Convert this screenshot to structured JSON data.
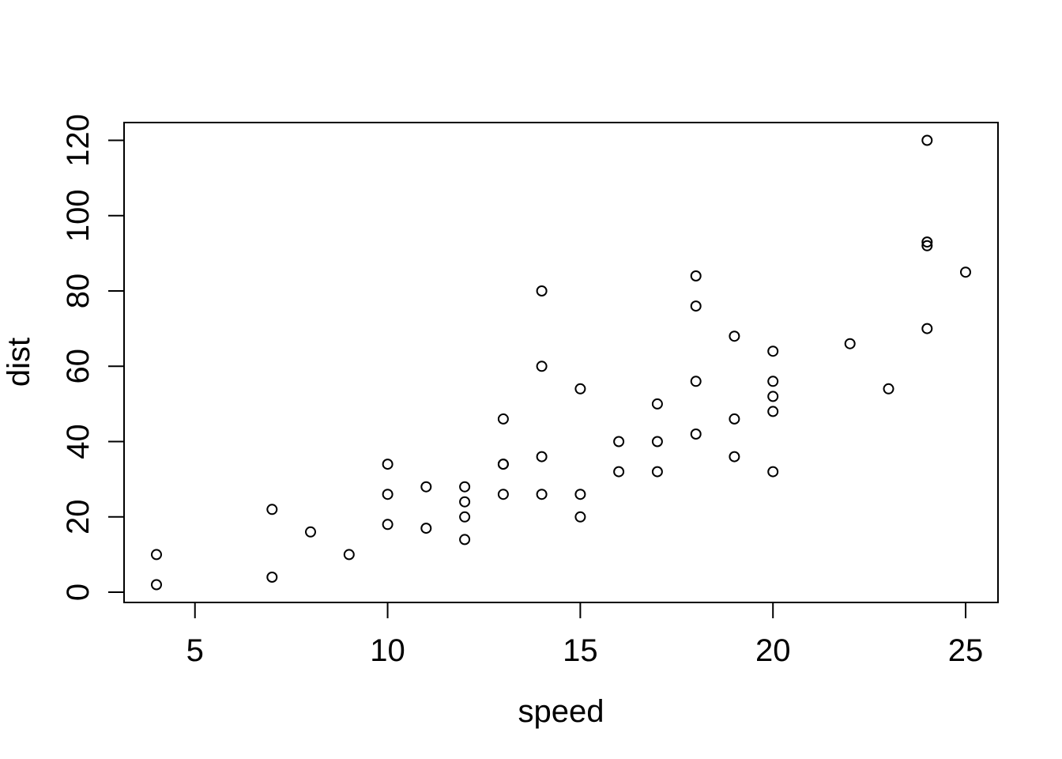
{
  "chart_data": {
    "type": "scatter",
    "title": "",
    "xlabel": "speed",
    "ylabel": "dist",
    "x": [
      4,
      4,
      7,
      7,
      8,
      9,
      10,
      10,
      10,
      11,
      11,
      12,
      12,
      12,
      12,
      13,
      13,
      13,
      13,
      14,
      14,
      14,
      14,
      15,
      15,
      15,
      16,
      16,
      17,
      17,
      17,
      18,
      18,
      18,
      18,
      19,
      19,
      19,
      20,
      20,
      20,
      20,
      20,
      22,
      23,
      24,
      24,
      24,
      24,
      25
    ],
    "y": [
      2,
      10,
      4,
      22,
      16,
      10,
      18,
      26,
      34,
      17,
      28,
      14,
      20,
      24,
      28,
      26,
      34,
      34,
      46,
      26,
      36,
      60,
      80,
      20,
      26,
      54,
      32,
      40,
      32,
      40,
      50,
      42,
      56,
      76,
      84,
      36,
      46,
      68,
      32,
      48,
      52,
      56,
      64,
      66,
      54,
      70,
      92,
      93,
      120,
      85
    ],
    "xlim": [
      3.16,
      25.84
    ],
    "ylim": [
      -2.72,
      124.72
    ],
    "x_ticks": [
      5,
      10,
      15,
      20,
      25
    ],
    "y_ticks": [
      0,
      20,
      40,
      60,
      80,
      100,
      120
    ],
    "grid": false,
    "legend": null,
    "point_style": {
      "shape": "open-circle",
      "color": "#000000",
      "radius": 6,
      "stroke_width": 2
    },
    "colors": {
      "background": "#ffffff",
      "foreground": "#000000"
    }
  }
}
